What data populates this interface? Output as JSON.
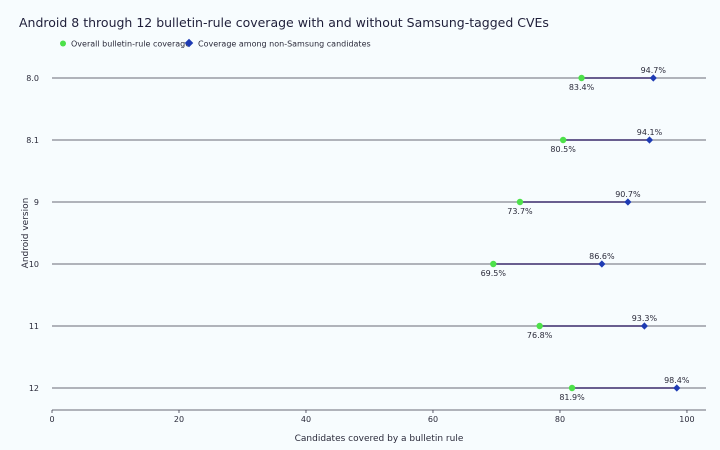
{
  "chart_data": {
    "type": "dumbbell",
    "title": "Android 8 through 12 bulletin-rule coverage with and without Samsung-tagged CVEs",
    "xlabel": "Candidates covered by a bulletin rule",
    "ylabel": "Android version",
    "xlim": [
      0,
      103
    ],
    "x_ticks": [
      "0",
      "20",
      "40",
      "60",
      "80",
      "100"
    ],
    "categories": [
      "8.0",
      "8.1",
      "9",
      "10",
      "11",
      "12"
    ],
    "series": [
      {
        "name": "Overall bulletin-rule coverage",
        "values": [
          83.4,
          80.5,
          73.7,
          69.5,
          76.8,
          81.9
        ],
        "labels": [
          "83.4%",
          "80.5%",
          "73.7%",
          "69.5%",
          "76.8%",
          "81.9%"
        ],
        "color": "#4de14a",
        "marker": "circle"
      },
      {
        "name": "Coverage among non-Samsung candidates",
        "values": [
          94.7,
          94.1,
          90.7,
          86.6,
          93.3,
          98.4
        ],
        "labels": [
          "94.7%",
          "94.1%",
          "90.7%",
          "86.6%",
          "93.3%",
          "98.4%"
        ],
        "color": "#1e3bb3",
        "marker": "diamond"
      }
    ],
    "connector_color": "#3a2a6a",
    "legend_position": "top-left",
    "grid": "horizontal"
  }
}
